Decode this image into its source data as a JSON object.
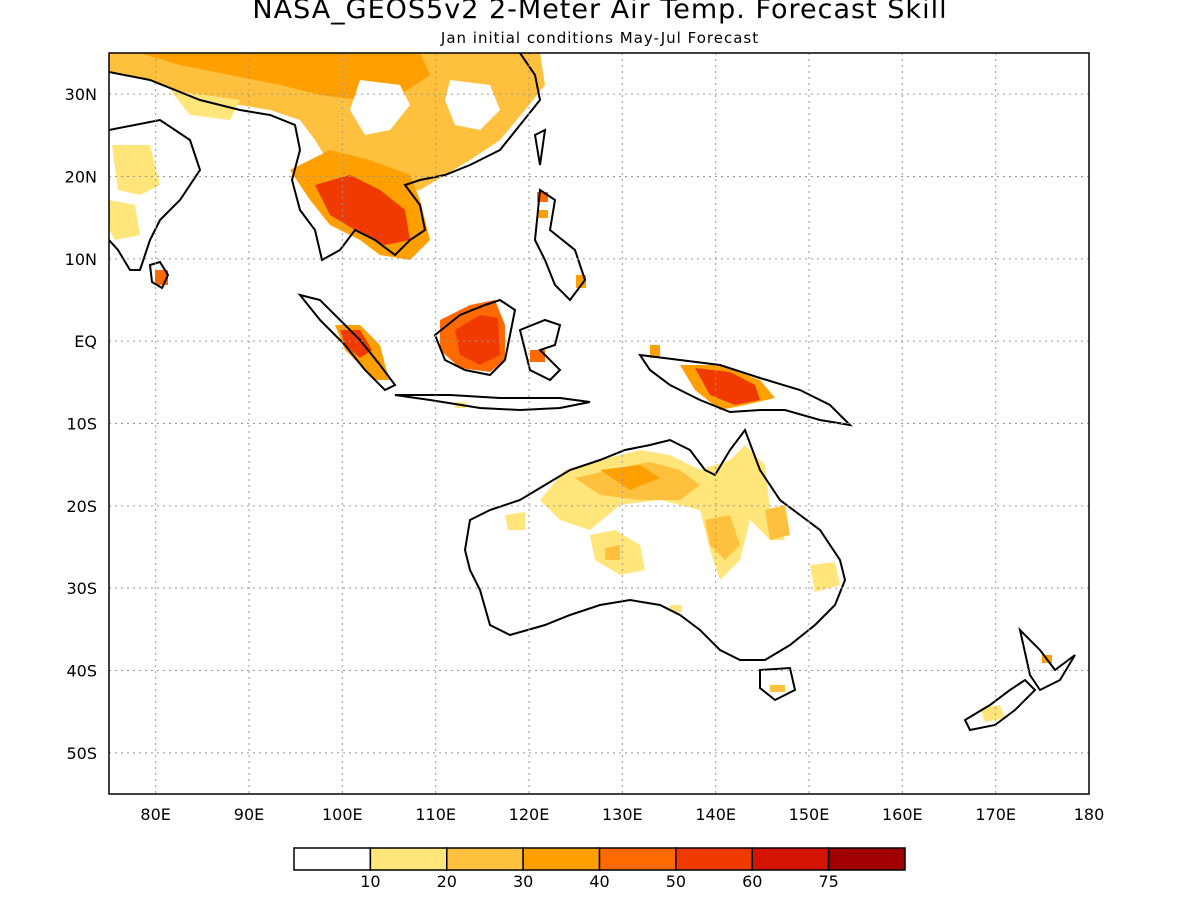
{
  "title": "NASA_GEOS5v2 2-Meter Air Temp. Forecast Skill",
  "subtitle": "Jan initial conditions  May-Jul Forecast",
  "map": {
    "lon_range": [
      75,
      180
    ],
    "lat_range": [
      -55,
      35
    ],
    "lon_ticks": [
      80,
      90,
      100,
      110,
      120,
      130,
      140,
      150,
      160,
      170,
      180
    ],
    "lon_labels": [
      "80E",
      "90E",
      "100E",
      "110E",
      "120E",
      "130E",
      "140E",
      "150E",
      "160E",
      "170E",
      "180"
    ],
    "lat_ticks": [
      30,
      20,
      10,
      0,
      -10,
      -20,
      -30,
      -40,
      -50
    ],
    "lat_labels": [
      "30N",
      "20N",
      "10N",
      "EQ",
      "10S",
      "20S",
      "30S",
      "40S",
      "50S"
    ],
    "grid": "dotted"
  },
  "colorbar": {
    "colors": [
      "#ffffff",
      "#ffe57a",
      "#ffc13d",
      "#ff9f00",
      "#ff6a00",
      "#f03a00",
      "#d21400",
      "#a00000"
    ],
    "labels": [
      "10",
      "20",
      "30",
      "40",
      "50",
      "60",
      "75"
    ]
  }
}
